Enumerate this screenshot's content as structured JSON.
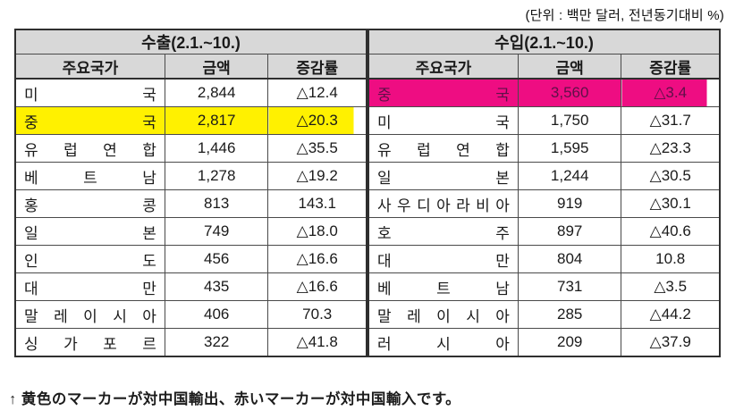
{
  "unit_note": "(단위 : 백만 달러, 전년동기대비 %)",
  "caption": "↑ 黄色のマーカーが対中国輸出、赤いマーカーが対中国輸入です。",
  "columns": [
    "주요국가",
    "금액",
    "증감률"
  ],
  "export_table": {
    "title": "수출(2.1.~10.)",
    "rows": [
      {
        "country": "미국",
        "amount": "2,844",
        "rate": "△12.4",
        "highlight": ""
      },
      {
        "country": "중국",
        "amount": "2,817",
        "rate": "△20.3",
        "highlight": "yellow"
      },
      {
        "country": "유럽연합",
        "amount": "1,446",
        "rate": "△35.5",
        "highlight": ""
      },
      {
        "country": "베트남",
        "amount": "1,278",
        "rate": "△19.2",
        "highlight": ""
      },
      {
        "country": "홍콩",
        "amount": "813",
        "rate": "143.1",
        "highlight": ""
      },
      {
        "country": "일본",
        "amount": "749",
        "rate": "△18.0",
        "highlight": ""
      },
      {
        "country": "인도",
        "amount": "456",
        "rate": "△16.6",
        "highlight": ""
      },
      {
        "country": "대만",
        "amount": "435",
        "rate": "△16.6",
        "highlight": ""
      },
      {
        "country": "말레이시아",
        "amount": "406",
        "rate": "70.3",
        "highlight": ""
      },
      {
        "country": "싱가포르",
        "amount": "322",
        "rate": "△41.8",
        "highlight": ""
      }
    ]
  },
  "import_table": {
    "title": "수입(2.1.~10.)",
    "rows": [
      {
        "country": "중국",
        "amount": "3,560",
        "rate": "△3.4",
        "highlight": "pink"
      },
      {
        "country": "미국",
        "amount": "1,750",
        "rate": "△31.7",
        "highlight": ""
      },
      {
        "country": "유럽연합",
        "amount": "1,595",
        "rate": "△23.3",
        "highlight": ""
      },
      {
        "country": "일본",
        "amount": "1,244",
        "rate": "△30.5",
        "highlight": ""
      },
      {
        "country": "사우디아라비아",
        "amount": "919",
        "rate": "△30.1",
        "highlight": ""
      },
      {
        "country": "호주",
        "amount": "897",
        "rate": "△40.6",
        "highlight": ""
      },
      {
        "country": "대만",
        "amount": "804",
        "rate": "10.8",
        "highlight": ""
      },
      {
        "country": "베트남",
        "amount": "731",
        "rate": "△3.5",
        "highlight": ""
      },
      {
        "country": "말레이시아",
        "amount": "285",
        "rate": "△44.2",
        "highlight": ""
      },
      {
        "country": "러시아",
        "amount": "209",
        "rate": "△37.9",
        "highlight": ""
      }
    ]
  },
  "colors": {
    "header_bg": "#d8d8d8",
    "yellow_highlight": "#fff100",
    "pink_highlight": "#ee0d82",
    "pink_text": "#5e1048",
    "border": "#2f2f2f"
  }
}
